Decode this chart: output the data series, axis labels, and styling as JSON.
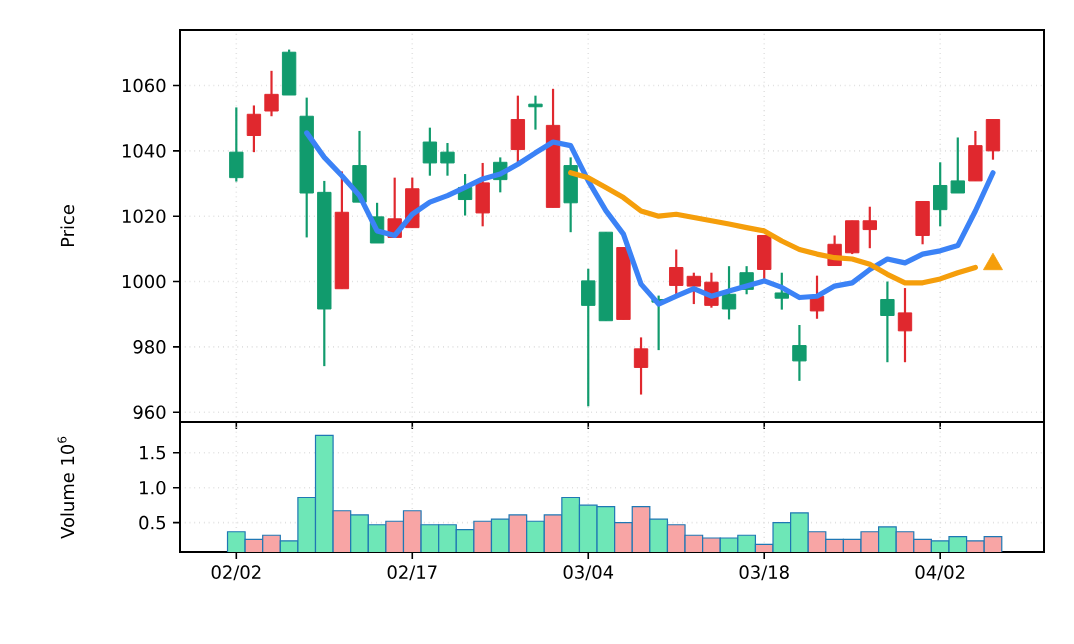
{
  "chart_data": [
    {
      "type": "candlestick",
      "ylabel": "Price",
      "grid": true,
      "tick_labels": "y",
      "categories": [
        null,
        null,
        null,
        null,
        null,
        null,
        null,
        null,
        null,
        null,
        null,
        null,
        null,
        null,
        null,
        null,
        null,
        null,
        null,
        null,
        null,
        null,
        null,
        null,
        null,
        null,
        null,
        null,
        null,
        null,
        null,
        null,
        null,
        null,
        null,
        null,
        null,
        null,
        null,
        null,
        null,
        null,
        null,
        null
      ],
      "ylim": [
        957,
        1077
      ],
      "yticks": [
        960,
        980,
        1000,
        1020,
        1040,
        1060
      ],
      "ohlc": [
        [
          1031.8,
          1053.3,
          1030.6,
          1039.6
        ],
        [
          1051.2,
          1053.9,
          1039.6,
          1044.7
        ],
        [
          1057.3,
          1064.5,
          1050.6,
          1052.2
        ],
        [
          1057.1,
          1071.0,
          1057.1,
          1070.2
        ],
        [
          1027.1,
          1056.3,
          1013.5,
          1050.6
        ],
        [
          991.6,
          1030.8,
          974.1,
          1027.3
        ],
        [
          1021.2,
          1033.7,
          997.8,
          997.8
        ],
        [
          1024.3,
          1046.1,
          1024.3,
          1035.5
        ],
        [
          1011.8,
          1024.1,
          1011.8,
          1019.8
        ],
        [
          1019.2,
          1031.8,
          1013.5,
          1013.5
        ],
        [
          1028.4,
          1031.8,
          1016.5,
          1016.5
        ],
        [
          1036.3,
          1047.1,
          1032.4,
          1042.7
        ],
        [
          1036.3,
          1042.4,
          1032.4,
          1039.6
        ],
        [
          1025.1,
          1032.9,
          1020.2,
          1028.8
        ],
        [
          1030.2,
          1036.3,
          1016.9,
          1021.0
        ],
        [
          1031.2,
          1038.0,
          1027.3,
          1036.5
        ],
        [
          1049.6,
          1056.9,
          1036.5,
          1040.4
        ],
        [
          1053.5,
          1056.9,
          1046.5,
          1054.3
        ],
        [
          1047.8,
          1059.0,
          1022.7,
          1022.7
        ],
        [
          1024.1,
          1038.0,
          1015.1,
          1035.5
        ],
        [
          992.7,
          1003.9,
          961.8,
          1000.2
        ],
        [
          988.0,
          1015.1,
          988.0,
          1015.1
        ],
        [
          1010.4,
          1010.4,
          988.4,
          988.4
        ],
        [
          979.4,
          982.9,
          965.4,
          973.7
        ],
        [
          993.7,
          995.7,
          979.0,
          994.5
        ],
        [
          1004.3,
          1009.8,
          996.1,
          998.8
        ],
        [
          1001.6,
          1002.7,
          993.1,
          998.6
        ],
        [
          999.8,
          1002.7,
          992.0,
          992.7
        ],
        [
          991.6,
          1004.7,
          988.4,
          996.1
        ],
        [
          997.6,
          1004.7,
          996.1,
          1002.7
        ],
        [
          1014.1,
          1014.1,
          1000.8,
          1003.7
        ],
        [
          994.9,
          1002.7,
          991.4,
          996.5
        ],
        [
          975.7,
          986.7,
          969.6,
          980.4
        ],
        [
          995.5,
          1001.8,
          988.6,
          991.0
        ],
        [
          1011.4,
          1014.1,
          1004.9,
          1004.9
        ],
        [
          1018.6,
          1018.6,
          1008.4,
          1008.8
        ],
        [
          1018.6,
          1022.9,
          1010.2,
          1015.9
        ],
        [
          989.6,
          1000.0,
          975.3,
          994.5
        ],
        [
          990.4,
          998.0,
          975.3,
          984.9
        ],
        [
          1024.5,
          1024.5,
          1011.4,
          1014.1
        ],
        [
          1022.0,
          1036.5,
          1016.9,
          1029.4
        ],
        [
          1027.1,
          1044.1,
          1027.1,
          1030.8
        ],
        [
          1041.6,
          1046.1,
          1030.8,
          1030.8
        ],
        [
          1049.6,
          1049.6,
          1037.3,
          1040.0
        ]
      ],
      "colors": [
        "#119b6d",
        "#e0282e",
        "#e0282e",
        "#119b6d",
        "#119b6d",
        "#119b6d",
        "#e0282e",
        "#119b6d",
        "#119b6d",
        "#e0282e",
        "#e0282e",
        "#119b6d",
        "#119b6d",
        "#119b6d",
        "#e0282e",
        "#119b6d",
        "#e0282e",
        "#119b6d",
        "#e0282e",
        "#119b6d",
        "#119b6d",
        "#119b6d",
        "#e0282e",
        "#e0282e",
        "#119b6d",
        "#e0282e",
        "#e0282e",
        "#e0282e",
        "#119b6d",
        "#119b6d",
        "#e0282e",
        "#119b6d",
        "#119b6d",
        "#e0282e",
        "#e0282e",
        "#e0282e",
        "#e0282e",
        "#119b6d",
        "#e0282e",
        "#e0282e",
        "#119b6d",
        "#119b6d",
        "#e0282e",
        "#e0282e"
      ],
      "series": [
        {
          "type": "line",
          "color": "#3b82f6",
          "marker": "none",
          "values": [
            null,
            null,
            null,
            null,
            1045.5,
            1038.0,
            1032.4,
            1026.3,
            1015.5,
            1014.1,
            1020.6,
            1024.3,
            1026.3,
            1028.8,
            1031.4,
            1032.9,
            1035.9,
            1039.4,
            1042.7,
            1041.6,
            1030.8,
            1021.7,
            1014.5,
            999.2,
            993.1,
            995.5,
            997.8,
            995.5,
            997.1,
            998.6,
            1000.2,
            998.2,
            995.1,
            995.5,
            998.6,
            999.6,
            1003.7,
            1006.9,
            1005.7,
            1008.4,
            1009.4,
            1011.0,
            1021.6,
            1033.3
          ]
        },
        {
          "type": "line",
          "color": "#f59e0b",
          "marker": "none",
          "values": [
            null,
            null,
            null,
            null,
            null,
            null,
            null,
            null,
            null,
            null,
            null,
            null,
            null,
            null,
            null,
            null,
            null,
            null,
            null,
            1033.3,
            1031.8,
            1028.8,
            1025.7,
            1021.6,
            1020.0,
            1020.6,
            1019.6,
            1018.6,
            1017.6,
            1016.5,
            1015.5,
            1012.4,
            1009.8,
            1008.4,
            1007.3,
            1006.9,
            1005.3,
            1002.2,
            999.6,
            999.6,
            1000.8,
            1002.7,
            1004.3,
            null
          ]
        },
        {
          "type": "scatter",
          "color": "#f59e0b",
          "marker": "triangle",
          "values": [
            null,
            null,
            null,
            null,
            null,
            null,
            null,
            null,
            null,
            null,
            null,
            null,
            null,
            null,
            null,
            null,
            null,
            null,
            null,
            null,
            null,
            null,
            null,
            null,
            null,
            null,
            null,
            null,
            null,
            null,
            null,
            null,
            null,
            null,
            null,
            null,
            null,
            null,
            null,
            null,
            null,
            null,
            null,
            1005.3
          ]
        }
      ]
    },
    {
      "type": "bar",
      "ylabel": "Volume  10$^{6}$",
      "grid": true,
      "categories": [
        "02/02",
        null,
        null,
        null,
        null,
        null,
        null,
        null,
        null,
        null,
        "02/17",
        null,
        null,
        null,
        null,
        null,
        null,
        null,
        null,
        null,
        "03/04",
        null,
        null,
        null,
        null,
        null,
        null,
        null,
        null,
        null,
        "03/18",
        null,
        null,
        null,
        null,
        null,
        null,
        null,
        null,
        null,
        "04/02",
        null,
        null,
        null
      ],
      "ylim": [
        0.08,
        1.94
      ],
      "yticks": [
        0.5,
        {
          "value": 1.0,
          "label": "1.0"
        },
        1.5
      ],
      "values": [
        0.37,
        0.26,
        0.32,
        0.24,
        0.86,
        1.75,
        0.67,
        0.61,
        0.47,
        0.52,
        0.67,
        0.47,
        0.47,
        0.4,
        0.52,
        0.55,
        0.61,
        0.52,
        0.61,
        0.86,
        0.75,
        0.73,
        0.5,
        0.73,
        0.55,
        0.47,
        0.32,
        0.28,
        0.28,
        0.32,
        0.19,
        0.5,
        0.64,
        0.37,
        0.26,
        0.26,
        0.37,
        0.44,
        0.37,
        0.26,
        0.24,
        0.3,
        0.24,
        0.3
      ],
      "colors": [
        "#6ee7b7",
        "#f8a5a5",
        "#f8a5a5",
        "#6ee7b7",
        "#6ee7b7",
        "#6ee7b7",
        "#f8a5a5",
        "#6ee7b7",
        "#6ee7b7",
        "#f8a5a5",
        "#f8a5a5",
        "#6ee7b7",
        "#6ee7b7",
        "#6ee7b7",
        "#f8a5a5",
        "#6ee7b7",
        "#f8a5a5",
        "#6ee7b7",
        "#f8a5a5",
        "#6ee7b7",
        "#6ee7b7",
        "#6ee7b7",
        "#f8a5a5",
        "#f8a5a5",
        "#6ee7b7",
        "#f8a5a5",
        "#f8a5a5",
        "#f8a5a5",
        "#6ee7b7",
        "#6ee7b7",
        "#f8a5a5",
        "#6ee7b7",
        "#6ee7b7",
        "#f8a5a5",
        "#f8a5a5",
        "#f8a5a5",
        "#f8a5a5",
        "#6ee7b7",
        "#f8a5a5",
        "#f8a5a5",
        "#6ee7b7",
        "#6ee7b7",
        "#f8a5a5",
        "#f8a5a5"
      ]
    }
  ]
}
